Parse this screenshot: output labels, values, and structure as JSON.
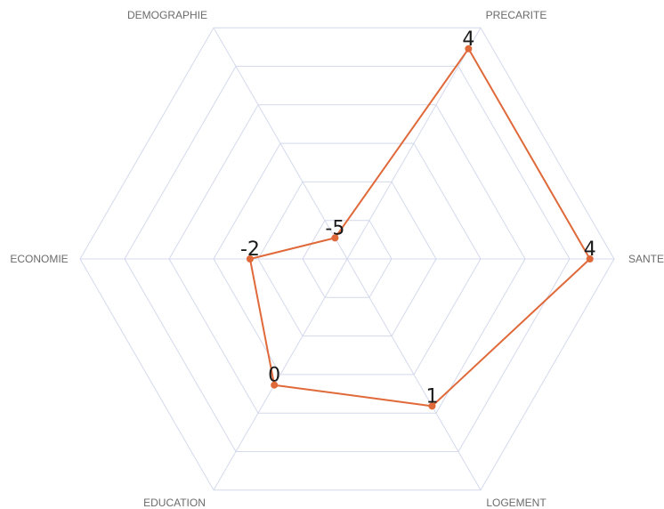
{
  "chart_data": {
    "type": "radar",
    "categories": [
      "PRECARITE",
      "SANTE",
      "LOGEMENT",
      "EDUCATION",
      "ECONOMIE",
      "DEMOGRAPHIE"
    ],
    "series": [
      {
        "values": [
          4,
          4,
          1,
          0,
          -2,
          -5
        ]
      }
    ],
    "value_labels": [
      "4",
      "4",
      "1",
      "0",
      "-2",
      "-5"
    ],
    "rlim": [
      -6,
      5
    ],
    "grid_levels": 6,
    "grid": true,
    "legend": "none",
    "colors": {
      "series": "#e0693a",
      "grid": "#d4d9ec"
    }
  }
}
